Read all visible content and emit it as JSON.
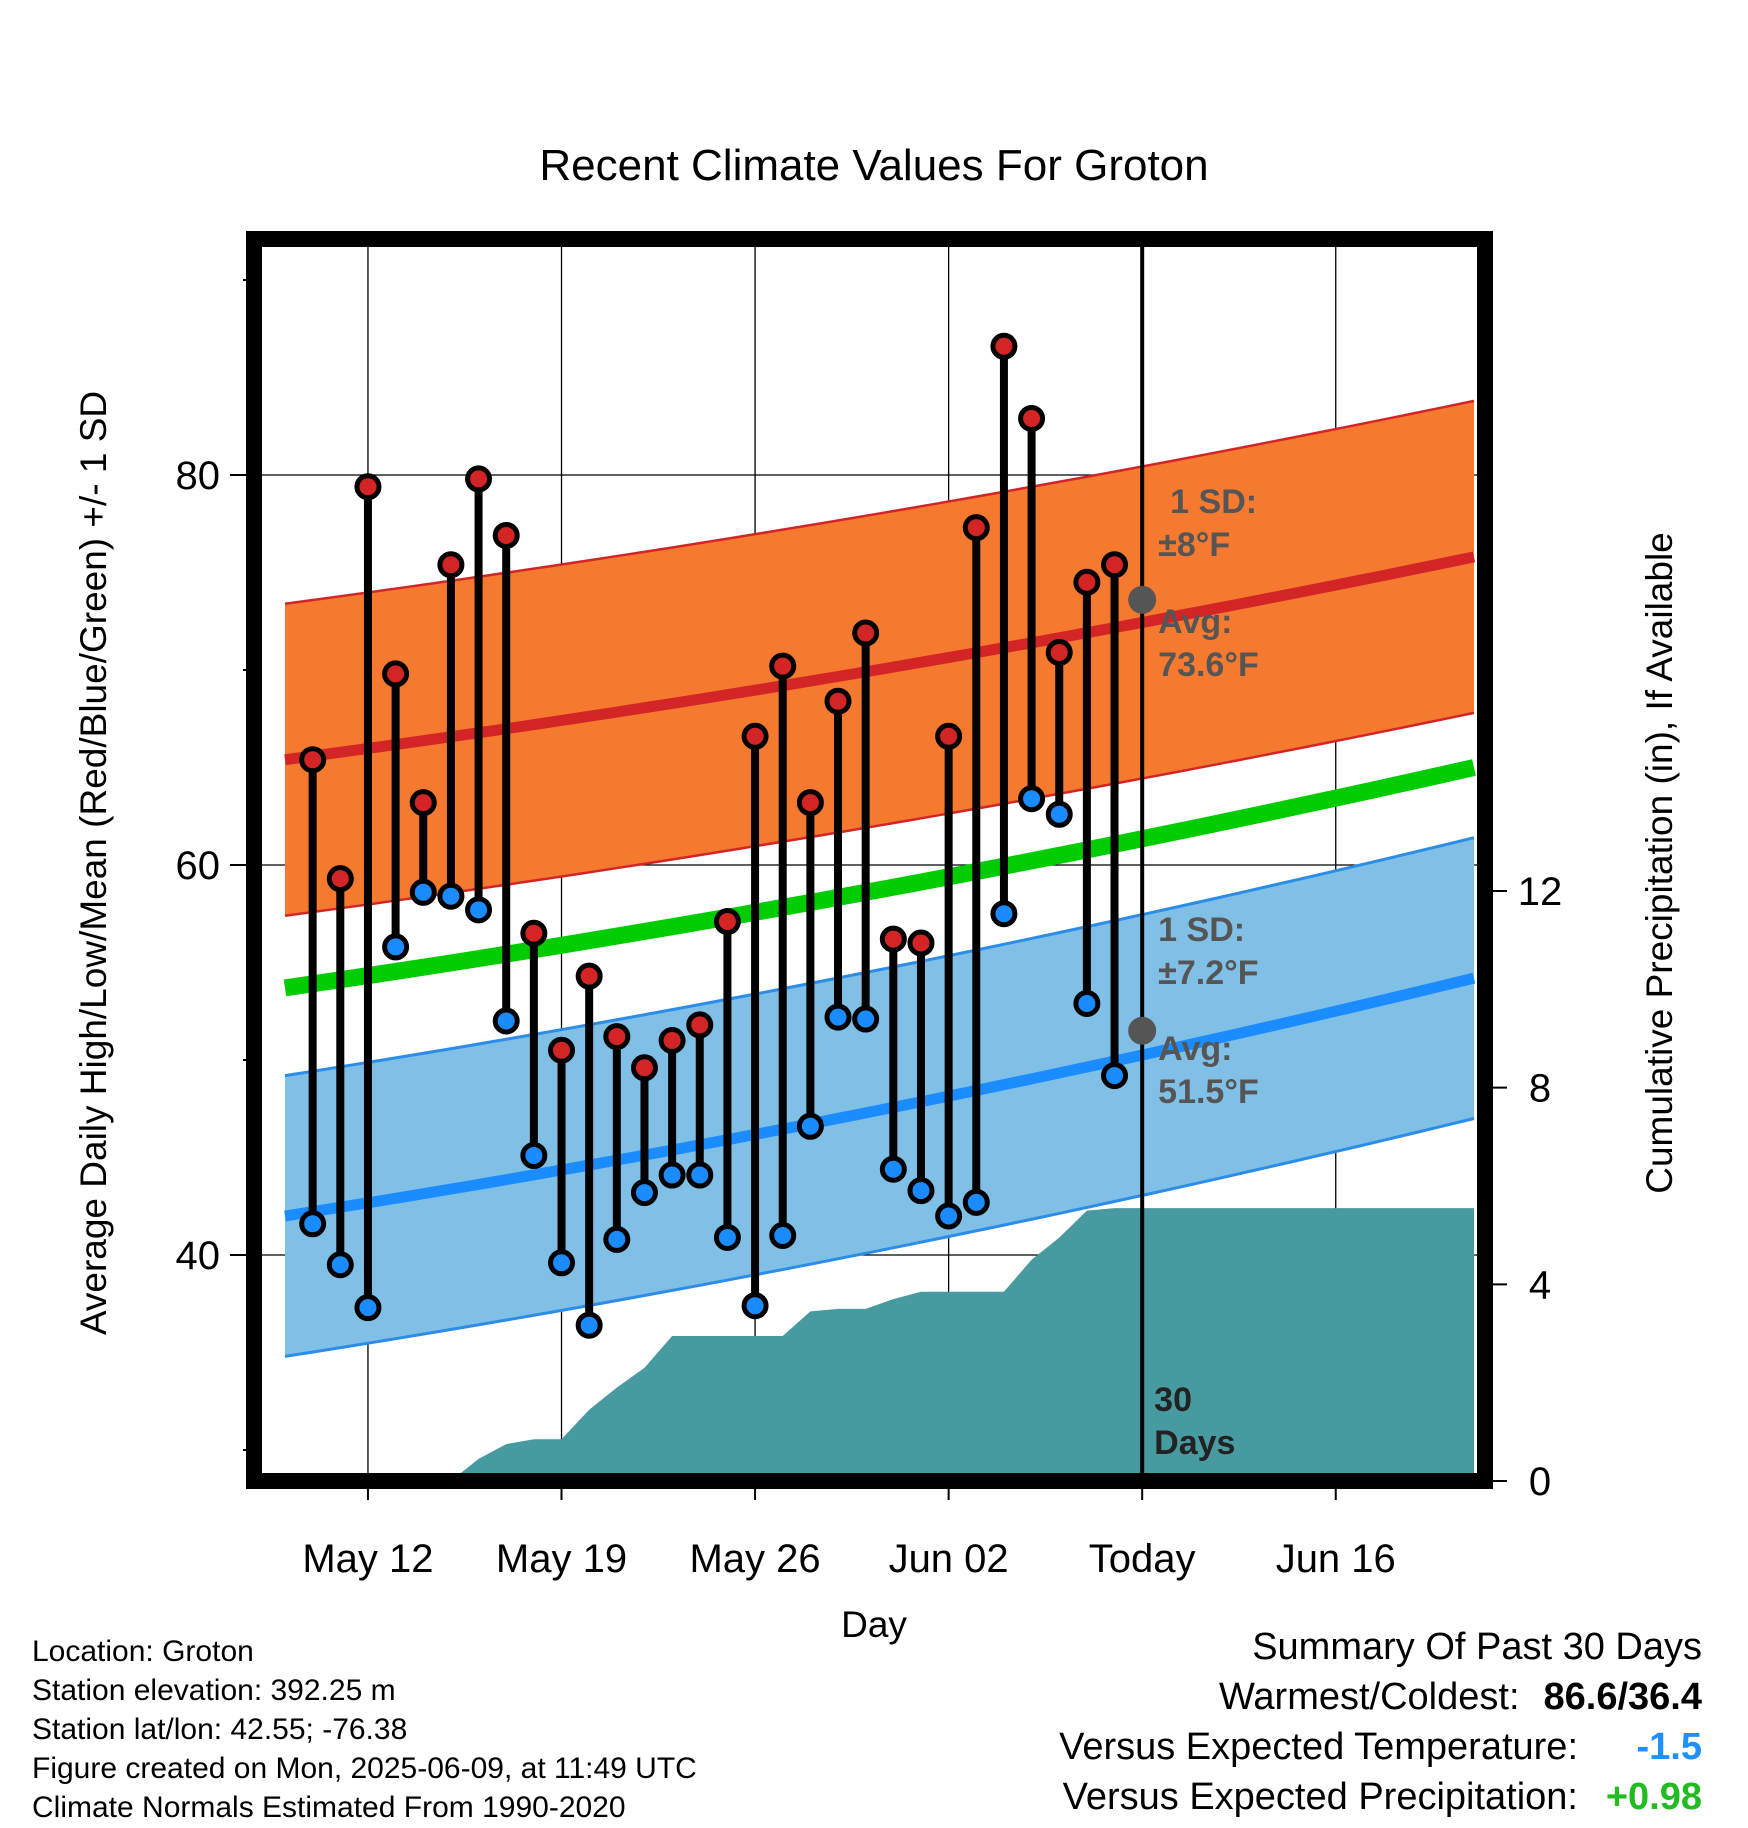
{
  "chart_data": {
    "type": "line",
    "title": "Recent Climate Values For Groton",
    "xlabel": "Day",
    "ylabel": "Average Daily High/Low/Mean (Red/Blue/Green) +/- 1 SD",
    "ylabel_right": "Cumulative Precipitation (in), If Available",
    "ylim": [
      29,
      91
    ],
    "ylim_right": [
      0,
      24
    ],
    "y_ticks": [
      40,
      60,
      80
    ],
    "y_ticks_right": [
      0,
      4,
      8,
      12
    ],
    "x_range": [
      0,
      43
    ],
    "x_ticks": [
      {
        "x": 3,
        "label": "May 12"
      },
      {
        "x": 10,
        "label": "May 19"
      },
      {
        "x": 17,
        "label": "May 26"
      },
      {
        "x": 24,
        "label": "Jun 02"
      },
      {
        "x": 31,
        "label": "Today"
      },
      {
        "x": 38,
        "label": "Jun 16"
      }
    ],
    "today_x": 31,
    "grid": true,
    "highs": [
      65.4,
      59.3,
      79.4,
      69.8,
      63.2,
      75.4,
      79.8,
      76.9,
      56.5,
      50.5,
      54.3,
      51.2,
      49.6,
      51.0,
      51.8,
      57.1,
      66.6,
      70.2,
      63.2,
      68.4,
      71.9,
      56.2,
      56.0,
      66.6,
      77.3,
      86.6,
      82.9,
      70.9,
      74.5,
      75.4
    ],
    "lows": [
      41.6,
      39.5,
      37.3,
      55.8,
      58.6,
      58.4,
      57.7,
      52.0,
      45.1,
      39.6,
      36.4,
      40.8,
      43.2,
      44.1,
      44.1,
      40.9,
      37.4,
      41.0,
      46.6,
      52.2,
      52.1,
      44.4,
      43.3,
      42.0,
      42.7,
      57.5,
      63.4,
      62.6,
      52.9,
      49.2
    ],
    "normal_high": {
      "start": 65.4,
      "end": 75.8,
      "sd": 8.0
    },
    "normal_low": {
      "start": 42.0,
      "end": 54.2,
      "sd": 7.2
    },
    "normal_mean": {
      "start": 53.7,
      "end": 65.0
    },
    "precip": [
      {
        "x": 0,
        "y": 0
      },
      {
        "x": 6,
        "y": 0
      },
      {
        "x": 7,
        "y": 0.45
      },
      {
        "x": 8,
        "y": 0.75
      },
      {
        "x": 9,
        "y": 0.85
      },
      {
        "x": 10,
        "y": 0.85
      },
      {
        "x": 11,
        "y": 1.45
      },
      {
        "x": 12,
        "y": 1.9
      },
      {
        "x": 13,
        "y": 2.3
      },
      {
        "x": 14,
        "y": 2.95
      },
      {
        "x": 15,
        "y": 2.95
      },
      {
        "x": 16,
        "y": 2.95
      },
      {
        "x": 17,
        "y": 2.95
      },
      {
        "x": 18,
        "y": 2.95
      },
      {
        "x": 19,
        "y": 3.45
      },
      {
        "x": 20,
        "y": 3.5
      },
      {
        "x": 21,
        "y": 3.5
      },
      {
        "x": 22,
        "y": 3.7
      },
      {
        "x": 23,
        "y": 3.85
      },
      {
        "x": 24,
        "y": 3.85
      },
      {
        "x": 25,
        "y": 3.85
      },
      {
        "x": 26,
        "y": 3.85
      },
      {
        "x": 27,
        "y": 4.5
      },
      {
        "x": 28,
        "y": 4.95
      },
      {
        "x": 29,
        "y": 5.5
      },
      {
        "x": 30,
        "y": 5.55
      },
      {
        "x": 31,
        "y": 5.55
      },
      {
        "x": 43,
        "y": 5.55
      }
    ],
    "annotations": {
      "high_sd_line1": "1 SD:",
      "high_sd_line2": "±8°F",
      "high_avg_line1": "Avg:",
      "high_avg_line2": "73.6°F",
      "high_avg_value": 73.6,
      "low_sd_line1": "1 SD:",
      "low_sd_line2": "±7.2°F",
      "low_avg_line1": "Avg:",
      "low_avg_line2": "51.5°F",
      "low_avg_value": 51.5,
      "days_line1": "30",
      "days_line2": "Days"
    },
    "colors": {
      "high_band": "#f57a30",
      "high_line": "#d42526",
      "low_band": "#80bfe6",
      "low_line": "#1a8cff",
      "low_band_edge": "#2b8de8",
      "mean_line": "#00cc00",
      "precip": "#469aa0",
      "high_dot": "#d42526",
      "low_dot": "#1a8cff"
    }
  },
  "info": {
    "location": "Location: Groton",
    "elevation": "Station elevation: 392.25 m",
    "latlon": "Station lat/lon: 42.55; -76.38",
    "created": "Figure created on Mon, 2025-06-09, at 11:49 UTC",
    "normals": "Climate Normals Estimated From 1990-2020"
  },
  "summary": {
    "heading": "Summary Of Past 30 Days",
    "warmest_label": "Warmest/Coldest:",
    "warmest_value": "86.6/36.4",
    "temp_label": "Versus Expected Temperature:",
    "temp_value": "-1.5",
    "temp_color": "#1e90ff",
    "precip_label": "Versus Expected Precipitation:",
    "precip_value": "+0.98",
    "precip_color": "#22bb22"
  }
}
